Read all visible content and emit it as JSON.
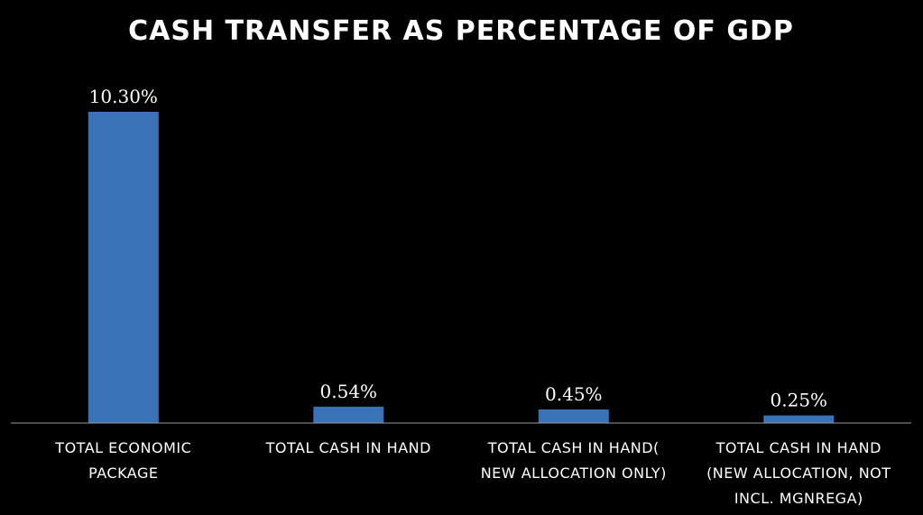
{
  "chart_data": {
    "type": "bar",
    "title": "CASH TRANSFER AS PERCENTAGE OF GDP",
    "xlabel": "",
    "ylabel": "",
    "ylim": [
      0,
      10.3
    ],
    "grid": false,
    "legend": "none",
    "bar_color": "#3a72b8",
    "axis_color": "#9a9a9a",
    "background": "#000000",
    "text_color": "#ffffff",
    "categories": [
      [
        "TOTAL ECONOMIC",
        "PACKAGE"
      ],
      [
        "TOTAL CASH IN HAND"
      ],
      [
        "TOTAL CASH IN HAND(",
        "NEW ALLOCATION ONLY)"
      ],
      [
        "TOTAL CASH IN HAND",
        "(NEW ALLOCATION, NOT",
        "INCL. MGNREGA)"
      ]
    ],
    "values": [
      10.3,
      0.54,
      0.45,
      0.25
    ],
    "data_labels": [
      "10.30%",
      "0.54%",
      "0.45%",
      "0.25%"
    ]
  }
}
